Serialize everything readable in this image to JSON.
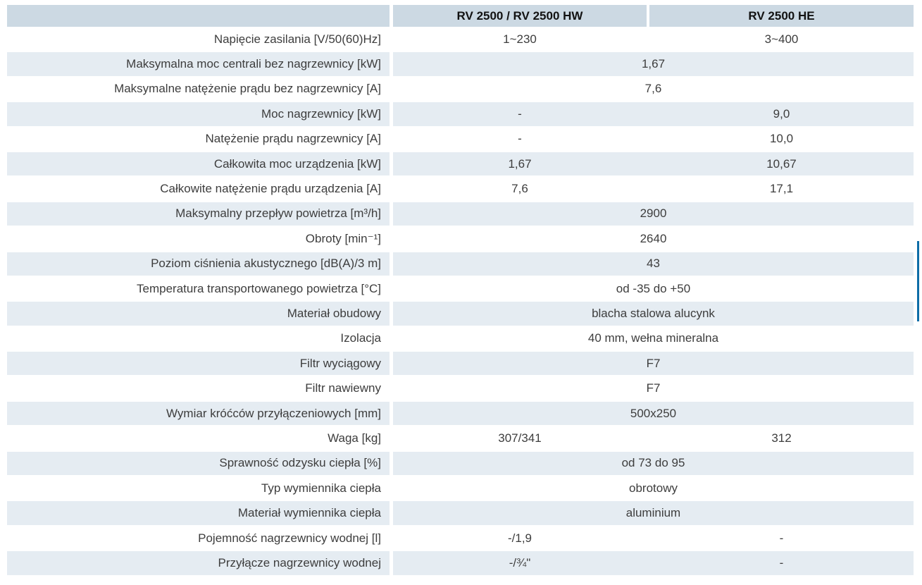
{
  "table": {
    "columns": [
      "RV 2500 / RV 2500 HW",
      "RV 2500 HE"
    ],
    "rows": [
      {
        "label": "Napięcie zasilania [V/50(60)Hz]",
        "values": [
          "1~230",
          "3~400"
        ]
      },
      {
        "label": "Maksymalna moc centrali bez nagrzewnicy [kW]",
        "merged": "1,67"
      },
      {
        "label": "Maksymalne natężenie prądu bez nagrzewnicy [A]",
        "merged": "7,6"
      },
      {
        "label": "Moc nagrzewnicy [kW]",
        "values": [
          "-",
          "9,0"
        ]
      },
      {
        "label": "Natężenie prądu nagrzewnicy [A]",
        "values": [
          "-",
          "10,0"
        ]
      },
      {
        "label": "Całkowita moc urządzenia [kW]",
        "values": [
          "1,67",
          "10,67"
        ]
      },
      {
        "label": "Całkowite natężenie prądu urządzenia [A]",
        "values": [
          "7,6",
          "17,1"
        ]
      },
      {
        "label": "Maksymalny przepływ powietrza [m³/h]",
        "merged": "2900"
      },
      {
        "label": "Obroty [min⁻¹]",
        "merged": "2640"
      },
      {
        "label": "Poziom ciśnienia akustycznego [dB(A)/3 m]",
        "merged": "43"
      },
      {
        "label": "Temperatura transportowanego powietrza [°C]",
        "merged": "od -35 do +50"
      },
      {
        "label": "Materiał obudowy",
        "merged": "blacha stalowa alucynk"
      },
      {
        "label": "Izolacja",
        "merged": "40 mm, wełna mineralna"
      },
      {
        "label": "Filtr wyciągowy",
        "merged": "F7"
      },
      {
        "label": "Filtr nawiewny",
        "merged": "F7"
      },
      {
        "label": "Wymiar króćców przyłączeniowych [mm]",
        "merged": "500x250"
      },
      {
        "label": "Waga [kg]",
        "values": [
          "307/341",
          "312"
        ]
      },
      {
        "label": "Sprawność odzysku ciepła [%]",
        "merged": "od 73 do 95"
      },
      {
        "label": "Typ wymiennika ciepła",
        "merged": "obrotowy"
      },
      {
        "label": "Materiał wymiennika ciepła",
        "merged": "aluminium"
      },
      {
        "label": "Pojemność nagrzewnicy wodnej [l]",
        "values": [
          "-/1,9",
          "-"
        ]
      },
      {
        "label": "Przyłącze nagrzewnicy wodnej",
        "values": [
          "-/¾\"",
          "-"
        ]
      }
    ]
  },
  "colors": {
    "header_bg": "#ccd9e3",
    "row_shaded_bg": "#e5ecf2",
    "accent_bar": "#0e6da7"
  }
}
